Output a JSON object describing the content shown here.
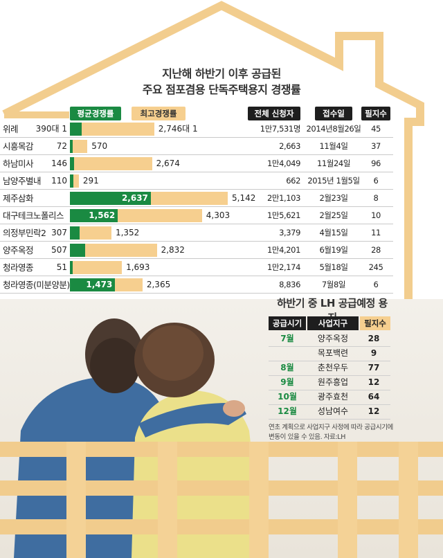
{
  "title_lines": [
    "지난해 하반기 이후 공급된",
    "주요 점포겸용 단독주택용지 경쟁률"
  ],
  "colors": {
    "avg": "#1a8a42",
    "max": "#f6cf8f",
    "house_outline": "#f2cd8e",
    "header_bg": "#1e1e1e"
  },
  "chart_data": {
    "type": "bar",
    "orientation": "horizontal",
    "legend": {
      "avg_label": "평균경쟁률",
      "max_label": "최고경쟁률",
      "placement": "top-left"
    },
    "columns": {
      "applicants": "전체 신청자",
      "date": "접수일",
      "lots": "필지수"
    },
    "categories": [
      "위례",
      "시흥목감",
      "하남미사",
      "남양주별내",
      "제주삼화",
      "대구테크노폴리스",
      "의정부민락2",
      "양주옥정",
      "청라영종",
      "청라영종(미분양분)"
    ],
    "series": [
      {
        "name": "평균경쟁률",
        "values": [
          390,
          72,
          146,
          110,
          2637,
          1562,
          307,
          507,
          51,
          1473
        ],
        "labels": [
          "390대 1",
          "72",
          "146",
          "110",
          "2,637",
          "1,562",
          "307",
          "507",
          "51",
          "1,473"
        ]
      },
      {
        "name": "최고경쟁률",
        "values": [
          2746,
          570,
          2674,
          291,
          5142,
          4303,
          1352,
          2832,
          1693,
          2365
        ],
        "labels": [
          "2,746대 1",
          "570",
          "2,674",
          "291",
          "5,142",
          "4,303",
          "1,352",
          "2,832",
          "1,693",
          "2,365"
        ]
      }
    ],
    "applicants": [
      "1만7,531명",
      "2,663",
      "1만4,049",
      "662",
      "2만1,103",
      "1만5,621",
      "3,379",
      "1만4,201",
      "1만2,174",
      "8,836"
    ],
    "dates": [
      "2014년8월26일",
      "11월4일",
      "11월24일",
      "2015년 1월5일",
      "2월23일",
      "2월25일",
      "4월15일",
      "6월19일",
      "5월18일",
      "7월8일"
    ],
    "lots": [
      "45",
      "37",
      "96",
      "6",
      "8",
      "10",
      "11",
      "28",
      "245",
      "6"
    ],
    "xlim": [
      0,
      5142
    ]
  },
  "lh": {
    "title": "하반기 중 LH 공급예정 용지",
    "headers": {
      "month": "공급시기",
      "district": "사업지구",
      "count": "필지수"
    },
    "rows": [
      {
        "month": "7월",
        "district": "양주옥정",
        "count": "28"
      },
      {
        "month": "",
        "district": "목포백련",
        "count": "9"
      },
      {
        "month": "8월",
        "district": "춘천우두",
        "count": "77"
      },
      {
        "month": "9월",
        "district": "원주흥업",
        "count": "12"
      },
      {
        "month": "10월",
        "district": "광주효천",
        "count": "64"
      },
      {
        "month": "12월",
        "district": "성남여수",
        "count": "12"
      }
    ],
    "note": "연초 계획으로 사업지구 사정에 따라 공급시기에 변동이 있을 수 있음. 자료:LH"
  }
}
